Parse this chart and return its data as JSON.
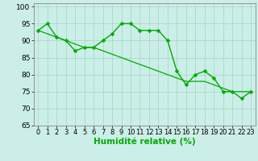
{
  "x": [
    0,
    1,
    2,
    3,
    4,
    5,
    6,
    7,
    8,
    9,
    10,
    11,
    12,
    13,
    14,
    15,
    16,
    17,
    18,
    19,
    20,
    21,
    22,
    23
  ],
  "y_main": [
    93,
    95,
    91,
    90,
    87,
    88,
    88,
    90,
    92,
    95,
    95,
    93,
    93,
    93,
    90,
    81,
    77,
    80,
    81,
    79,
    75,
    75,
    73,
    75
  ],
  "y_trend": [
    93,
    92,
    91,
    90,
    89,
    88,
    88,
    87,
    86,
    85,
    84,
    83,
    82,
    81,
    80,
    79,
    78,
    78,
    78,
    77,
    76,
    75,
    75,
    75
  ],
  "background_color": "#cceee8",
  "grid_color": "#aaddcc",
  "line_color": "#00aa00",
  "marker": "D",
  "marker_size": 2.5,
  "xlabel": "Humidité relative (%)",
  "ylim": [
    65,
    101
  ],
  "xlim": [
    -0.5,
    23.5
  ],
  "yticks": [
    65,
    70,
    75,
    80,
    85,
    90,
    95,
    100
  ],
  "xticks": [
    0,
    1,
    2,
    3,
    4,
    5,
    6,
    7,
    8,
    9,
    10,
    11,
    12,
    13,
    14,
    15,
    16,
    17,
    18,
    19,
    20,
    21,
    22,
    23
  ],
  "xlabel_fontsize": 7.5,
  "tick_fontsize": 6.5,
  "linewidth_main": 1.0,
  "linewidth_trend": 0.9
}
